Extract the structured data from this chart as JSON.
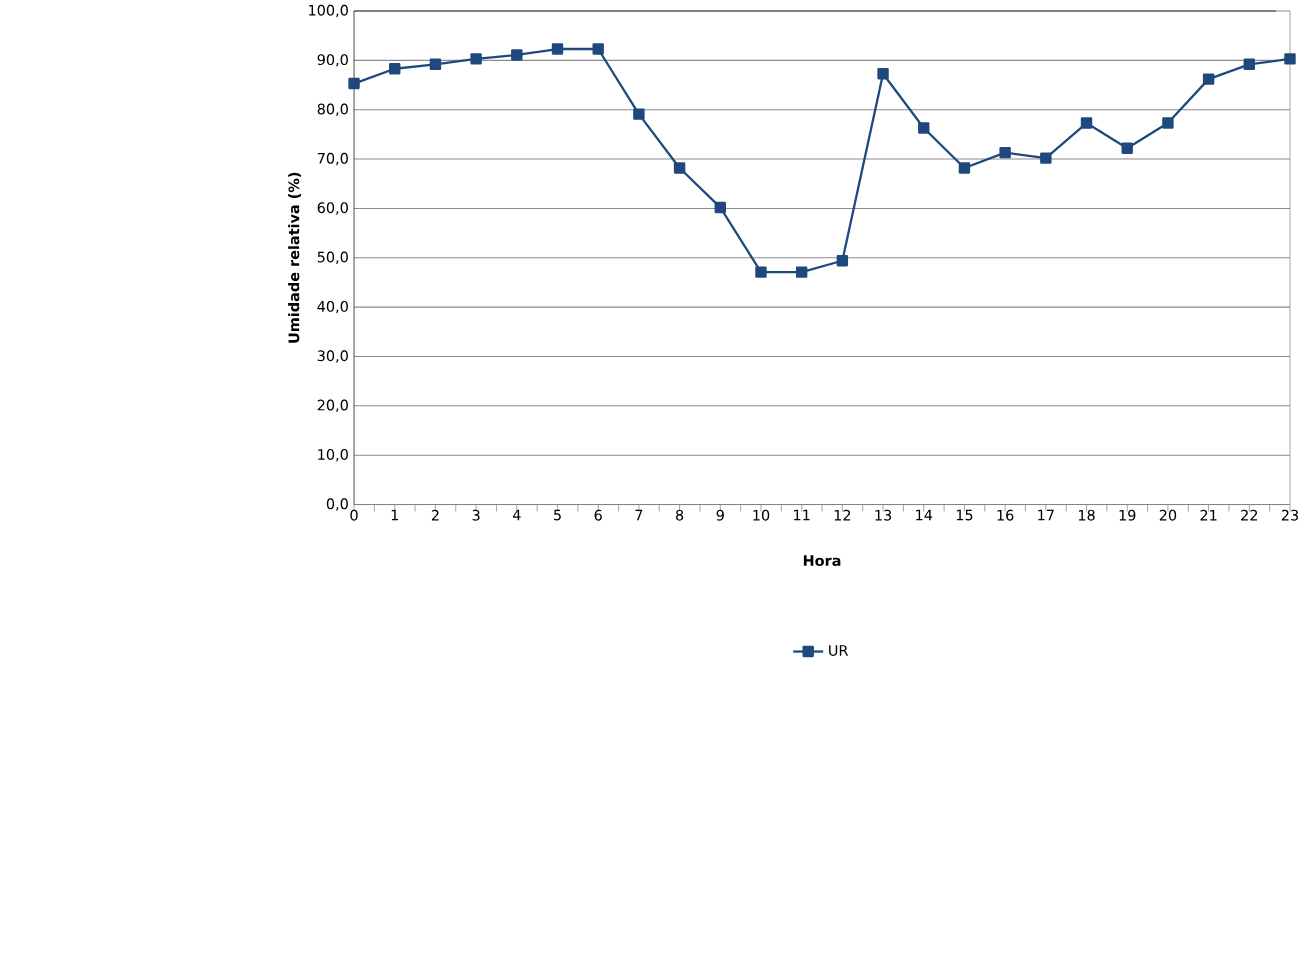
{
  "chart_data": {
    "type": "line",
    "xlabel": "Hora",
    "ylabel": "Umidade relativa (%)",
    "x": [
      0,
      1,
      2,
      3,
      4,
      5,
      6,
      7,
      8,
      9,
      10,
      11,
      12,
      13,
      14,
      15,
      16,
      17,
      18,
      19,
      20,
      21,
      22,
      23
    ],
    "series": [
      {
        "name": "UR",
        "color": "#1f497d",
        "values": [
          85.3,
          88.3,
          89.2,
          90.3,
          91.1,
          92.3,
          92.3,
          79.1,
          68.2,
          60.2,
          47.1,
          47.1,
          49.4,
          87.3,
          76.3,
          68.2,
          71.3,
          70.2,
          77.3,
          72.2,
          77.3,
          86.2,
          89.2,
          90.3
        ]
      }
    ],
    "xlim": [
      0,
      23
    ],
    "xticks": [
      0,
      1,
      2,
      3,
      4,
      5,
      6,
      7,
      8,
      9,
      10,
      11,
      12,
      13,
      14,
      15,
      16,
      17,
      18,
      19,
      20,
      21,
      22,
      23
    ],
    "ylim": [
      0,
      100
    ],
    "yticks": [
      {
        "value": 0,
        "label": "0,0"
      },
      {
        "value": 10,
        "label": "10,0"
      },
      {
        "value": 20,
        "label": "20,0"
      },
      {
        "value": 30,
        "label": "30,0"
      },
      {
        "value": 40,
        "label": "40,0"
      },
      {
        "value": 50,
        "label": "50,0"
      },
      {
        "value": 60,
        "label": "60,0"
      },
      {
        "value": 70,
        "label": "70,0"
      },
      {
        "value": 80,
        "label": "80,0"
      },
      {
        "value": 90,
        "label": "90,0"
      },
      {
        "value": 100,
        "label": "100,0"
      }
    ],
    "grid": "y",
    "legend": "bottom",
    "marker": "square",
    "line_style": "solid"
  }
}
